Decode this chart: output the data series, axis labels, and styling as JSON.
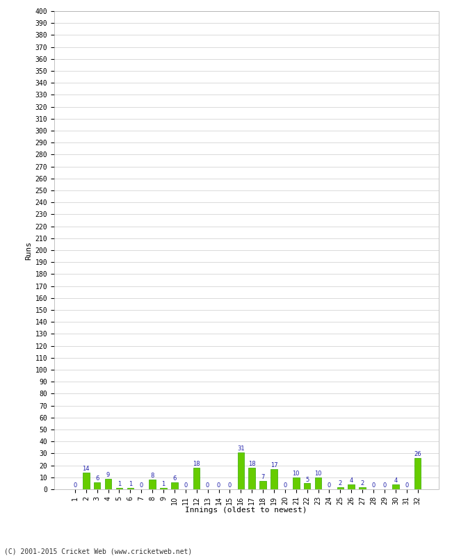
{
  "xlabel": "Innings (oldest to newest)",
  "ylabel": "Runs",
  "categories": [
    "1",
    "2",
    "3",
    "4",
    "5",
    "6",
    "7",
    "8",
    "9",
    "10",
    "11",
    "12",
    "13",
    "14",
    "15",
    "16",
    "17",
    "18",
    "19",
    "20",
    "21",
    "22",
    "23",
    "24",
    "25",
    "26",
    "27",
    "28",
    "29",
    "30",
    "31",
    "32"
  ],
  "values": [
    0,
    14,
    6,
    9,
    1,
    1,
    0,
    8,
    1,
    6,
    0,
    18,
    0,
    0,
    0,
    31,
    18,
    7,
    17,
    0,
    10,
    5,
    10,
    0,
    2,
    4,
    2,
    0,
    0,
    4,
    0,
    26
  ],
  "bar_color": "#66cc00",
  "bar_edge_color": "#33aa00",
  "label_color": "#2222aa",
  "ylim": [
    0,
    400
  ],
  "background_color": "#ffffff",
  "grid_color": "#cccccc",
  "footer": "(C) 2001-2015 Cricket Web (www.cricketweb.net)"
}
